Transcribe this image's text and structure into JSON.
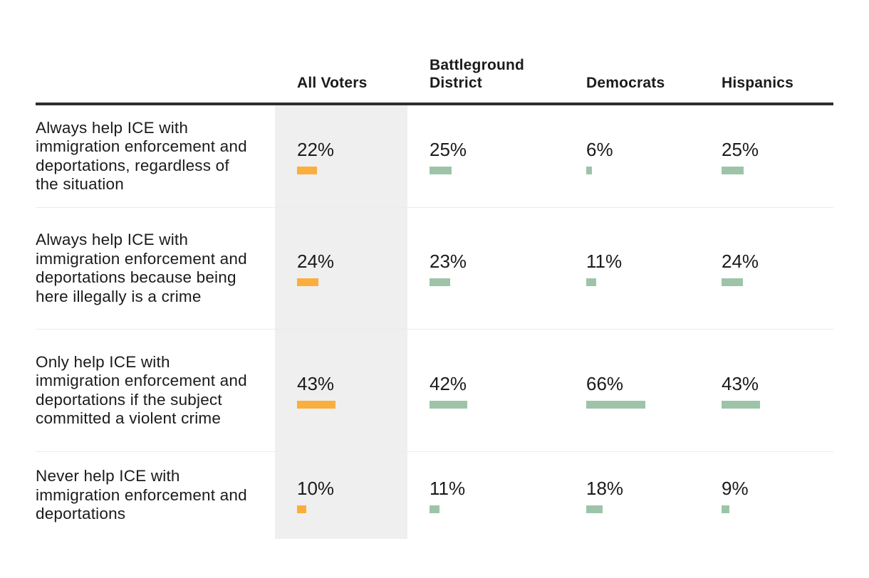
{
  "colors": {
    "accent_orange": "#FBAE3C",
    "accent_green": "#9DC4A9",
    "highlight_band": "#EFEFEF",
    "header_rule": "#2E2E2E",
    "row_divider": "#ECECEC",
    "text": "#1B1B1B"
  },
  "chart_data": {
    "type": "table",
    "note": "table of horizontal bar values; first column highlighted",
    "columns": [
      "All Voters",
      "Battleground District",
      "Democrats",
      "Hispanics"
    ],
    "rows": [
      {
        "label": "Always help ICE with immigration enforcement and deportations, regardless of the situation",
        "values": [
          22,
          25,
          6,
          25
        ],
        "display": [
          "22%",
          "25%",
          "6%",
          "25%"
        ]
      },
      {
        "label": "Always help ICE with immigration enforcement and deportations because being here illegally is a crime",
        "values": [
          24,
          23,
          11,
          24
        ],
        "display": [
          "24%",
          "23%",
          "11%",
          "24%"
        ]
      },
      {
        "label": "Only help ICE with immigration enforcement and deportations if the subject committed a violent crime",
        "values": [
          43,
          42,
          66,
          43
        ],
        "display": [
          "43%",
          "42%",
          "66%",
          "43%"
        ]
      },
      {
        "label": "Never help ICE with immigration enforcement and deportations",
        "values": [
          10,
          11,
          18,
          9
        ],
        "display": [
          "10%",
          "11%",
          "18%",
          "9%"
        ]
      }
    ]
  }
}
